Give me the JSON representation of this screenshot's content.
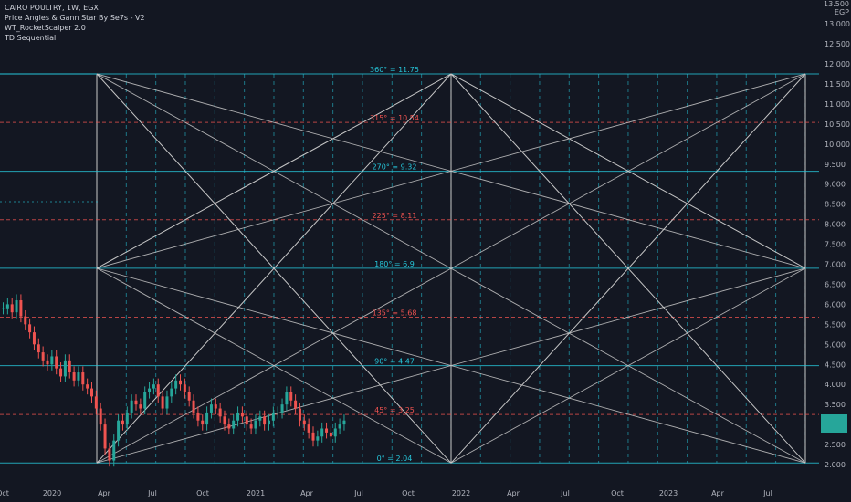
{
  "legend": {
    "symbol": "CAIRO POULTRY, 1W, EGX",
    "indicators": [
      "Price Angles & Gann Star By Se7s - V2",
      "WT_RocketScalper 2.0",
      "TD Sequential"
    ]
  },
  "currency": "EGP",
  "top_value": "13.500",
  "colors": {
    "background": "#131722",
    "teal_line": "#26c6da",
    "red_line": "#ef5350",
    "gann_white": "#c8c8c8",
    "candle_up": "#26a69a",
    "candle_down": "#ef5350",
    "axis_text": "#b2b5be"
  },
  "chart_data": {
    "type": "candlestick",
    "title": "CAIRO POULTRY, 1W, EGX",
    "y_axis_ticks": [
      "13.000",
      "12.500",
      "12.000",
      "11.500",
      "11.000",
      "10.500",
      "10.000",
      "9.500",
      "9.000",
      "8.500",
      "8.000",
      "7.500",
      "7.000",
      "6.500",
      "6.000",
      "5.500",
      "5.000",
      "4.500",
      "4.000",
      "3.500",
      "3.000",
      "2.500",
      "2.000"
    ],
    "x_axis_ticks": [
      "Oct",
      "2020",
      "Apr",
      "Jul",
      "Oct",
      "2021",
      "Apr",
      "Jul",
      "Oct",
      "2022",
      "Apr",
      "Jul",
      "Oct",
      "2023",
      "Apr",
      "Jul"
    ],
    "ylim": [
      1.8,
      13.5
    ],
    "gann_levels": [
      {
        "label": "360° = 11.75",
        "value": 11.75,
        "style": "solid"
      },
      {
        "label": "315° = 10.54",
        "value": 10.54,
        "style": "dashed"
      },
      {
        "label": "270° = 9.32",
        "value": 9.32,
        "style": "solid"
      },
      {
        "label": "225° = 8.11",
        "value": 8.11,
        "style": "dashed"
      },
      {
        "label": "180° = 6.9",
        "value": 6.9,
        "style": "solid"
      },
      {
        "label": "135° = 5.68",
        "value": 5.68,
        "style": "dashed"
      },
      {
        "label": "90° = 4.47",
        "value": 4.47,
        "style": "solid"
      },
      {
        "label": "45° = 3.25",
        "value": 3.25,
        "style": "dashed"
      },
      {
        "label": "0° = 2.04",
        "value": 2.04,
        "style": "solid"
      }
    ],
    "price_series": [
      5.9,
      6.0,
      5.8,
      6.1,
      5.7,
      5.5,
      5.3,
      5.0,
      4.8,
      4.6,
      4.5,
      4.7,
      4.4,
      4.2,
      4.6,
      4.3,
      4.1,
      4.3,
      4.0,
      3.9,
      3.7,
      3.4,
      3.0,
      2.4,
      2.1,
      2.6,
      3.1,
      3.0,
      3.3,
      3.6,
      3.5,
      3.4,
      3.8,
      3.9,
      4.0,
      3.7,
      3.4,
      3.7,
      3.9,
      4.1,
      4.0,
      3.8,
      3.6,
      3.3,
      3.1,
      3.0,
      3.3,
      3.5,
      3.4,
      3.2,
      3.0,
      2.9,
      3.1,
      3.3,
      3.2,
      3.0,
      2.9,
      3.1,
      3.2,
      3.0,
      3.1,
      3.3,
      3.3,
      3.5,
      3.8,
      3.6,
      3.4,
      3.1,
      3.0,
      2.8,
      2.6,
      2.7,
      2.9,
      2.8,
      2.7,
      2.9,
      3.0,
      3.1
    ]
  }
}
